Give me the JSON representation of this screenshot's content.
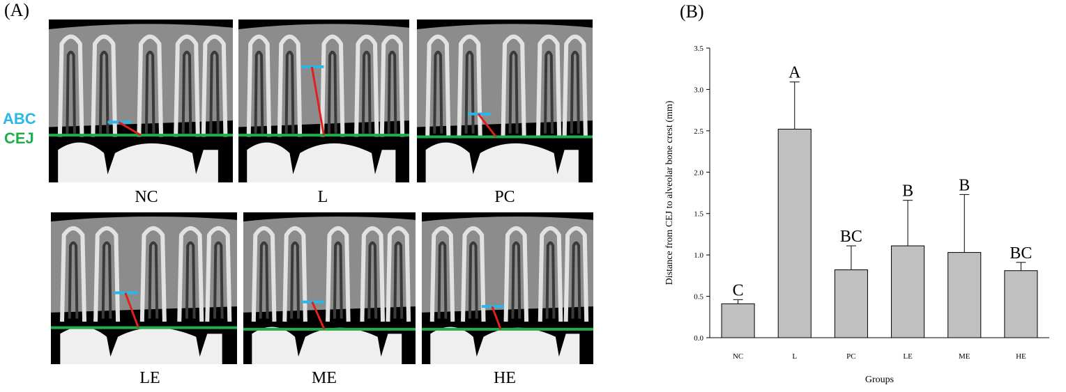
{
  "panel_labels": {
    "a": "(A)",
    "b": "(B)"
  },
  "legend_labels": {
    "abc": "ABC",
    "cej": "CEJ"
  },
  "line_colors": {
    "abc": "#29b6e8",
    "cej": "#1fae4a",
    "distance": "#e0201e"
  },
  "tiles": [
    {
      "caption": "NC"
    },
    {
      "caption": "L"
    },
    {
      "caption": "PC"
    },
    {
      "caption": "LE"
    },
    {
      "caption": "ME"
    },
    {
      "caption": "HE"
    }
  ],
  "chart_data": {
    "type": "bar",
    "categories": [
      "NC",
      "L",
      "PC",
      "LE",
      "ME",
      "HE"
    ],
    "values": [
      0.41,
      2.52,
      0.82,
      1.11,
      1.03,
      0.81
    ],
    "errors": [
      0.05,
      0.57,
      0.29,
      0.55,
      0.7,
      0.1
    ],
    "significance_labels": [
      "C",
      "A",
      "BC",
      "B",
      "B",
      "BC"
    ],
    "xlabel": "Groups",
    "ylabel": "Distance from CEJ to alveolar bone crest (mm)",
    "ylim": [
      0,
      3.5
    ],
    "yticks": [
      "0.0",
      "0.5",
      "1.0",
      "1.5",
      "2.0",
      "2.5",
      "3.0",
      "3.5"
    ],
    "bar_color": "#c0c0c0",
    "grid": false
  }
}
